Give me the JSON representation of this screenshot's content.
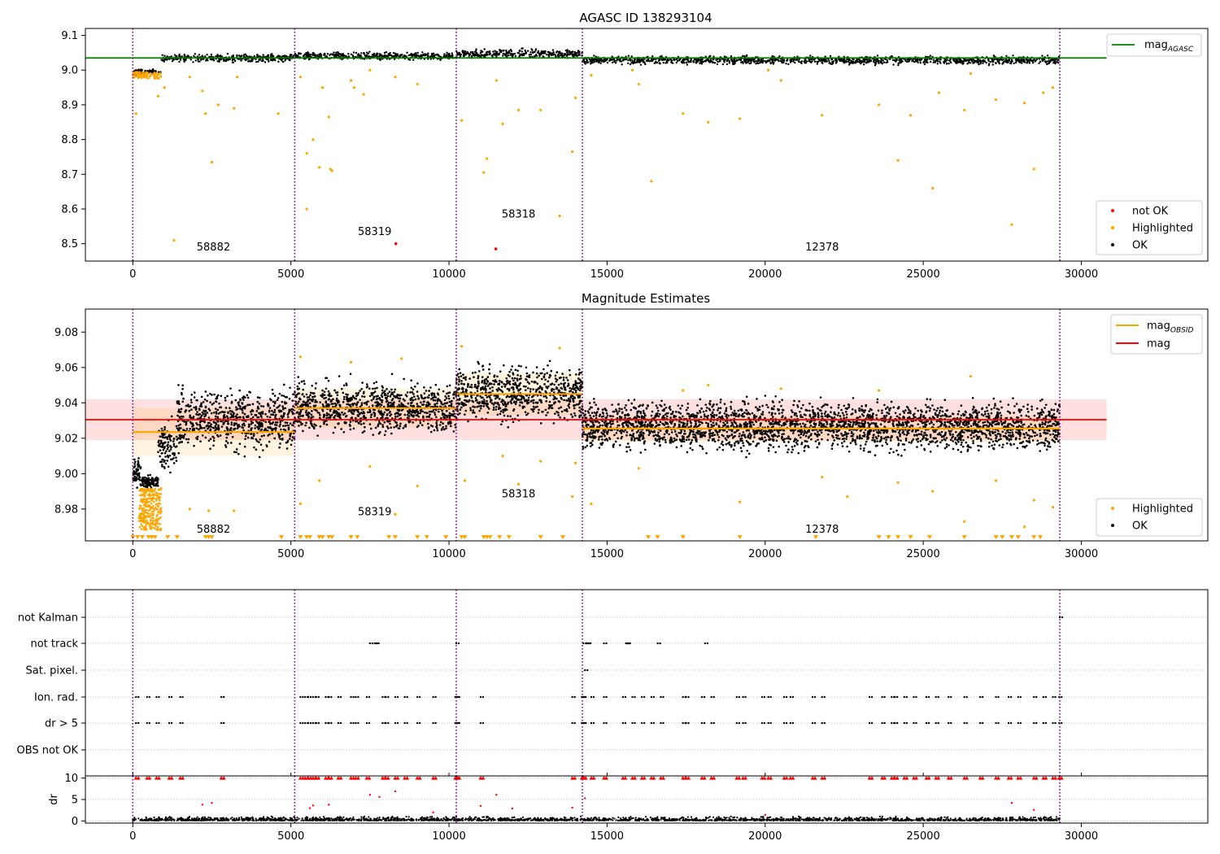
{
  "chart_data": [
    {
      "type": "scatter",
      "title": "AGASC ID 138293104",
      "xlim": [
        -1500,
        34000
      ],
      "ylim": [
        8.45,
        9.12
      ],
      "xticks": [
        0,
        5000,
        10000,
        15000,
        20000,
        25000,
        30000
      ],
      "yticks": [
        8.5,
        8.6,
        8.7,
        8.8,
        8.9,
        9.0,
        9.1
      ],
      "ytick_labels": [
        "8.5",
        "8.6",
        "8.7",
        "8.8",
        "8.9",
        "9.0",
        "9.1"
      ],
      "grid": false,
      "obsid_boundaries": [
        0,
        5120,
        10230,
        14220,
        29320
      ],
      "obsid_labels": [
        {
          "text": "58882",
          "x": 2550,
          "y": 8.48
        },
        {
          "text": "58319",
          "x": 7650,
          "y": 8.525
        },
        {
          "text": "58318",
          "x": 12200,
          "y": 8.575
        },
        {
          "text": "12378",
          "x": 21800,
          "y": 8.48
        }
      ],
      "mag_agasc": 9.035,
      "mag_agasc_xrange": [
        -1500,
        30800
      ],
      "ok_bands": [
        {
          "x0": 0,
          "x1": 900,
          "lo": 8.985,
          "hi": 9.005
        },
        {
          "x0": 900,
          "x1": 5120,
          "lo": 9.02,
          "hi": 9.05
        },
        {
          "x0": 5120,
          "x1": 10230,
          "lo": 9.025,
          "hi": 9.055
        },
        {
          "x0": 10230,
          "x1": 14220,
          "lo": 9.03,
          "hi": 9.065
        },
        {
          "x0": 14220,
          "x1": 29320,
          "lo": 9.012,
          "hi": 9.045
        }
      ],
      "highlighted_points": [
        {
          "x": 100,
          "y": 8.875
        },
        {
          "x": 800,
          "y": 8.925
        },
        {
          "x": 1000,
          "y": 8.95
        },
        {
          "x": 1300,
          "y": 8.51
        },
        {
          "x": 1800,
          "y": 8.98
        },
        {
          "x": 2200,
          "y": 8.94
        },
        {
          "x": 2300,
          "y": 8.875
        },
        {
          "x": 2500,
          "y": 8.735
        },
        {
          "x": 2700,
          "y": 8.9
        },
        {
          "x": 3200,
          "y": 8.89
        },
        {
          "x": 3300,
          "y": 8.98
        },
        {
          "x": 4600,
          "y": 8.875
        },
        {
          "x": 5300,
          "y": 8.98
        },
        {
          "x": 5500,
          "y": 8.6
        },
        {
          "x": 5500,
          "y": 8.76
        },
        {
          "x": 5700,
          "y": 8.8
        },
        {
          "x": 5900,
          "y": 8.72
        },
        {
          "x": 6000,
          "y": 8.95
        },
        {
          "x": 6200,
          "y": 8.865
        },
        {
          "x": 6250,
          "y": 8.715
        },
        {
          "x": 6300,
          "y": 8.71
        },
        {
          "x": 6900,
          "y": 8.97
        },
        {
          "x": 7000,
          "y": 8.95
        },
        {
          "x": 7300,
          "y": 8.93
        },
        {
          "x": 7500,
          "y": 9.0
        },
        {
          "x": 8300,
          "y": 8.98
        },
        {
          "x": 9000,
          "y": 8.96
        },
        {
          "x": 10400,
          "y": 8.855
        },
        {
          "x": 11100,
          "y": 8.705
        },
        {
          "x": 11200,
          "y": 8.745
        },
        {
          "x": 11500,
          "y": 8.97
        },
        {
          "x": 11700,
          "y": 8.845
        },
        {
          "x": 12200,
          "y": 8.885
        },
        {
          "x": 12900,
          "y": 8.885
        },
        {
          "x": 13500,
          "y": 8.58
        },
        {
          "x": 13900,
          "y": 8.765
        },
        {
          "x": 14000,
          "y": 8.92
        },
        {
          "x": 14500,
          "y": 8.985
        },
        {
          "x": 16000,
          "y": 8.96
        },
        {
          "x": 16400,
          "y": 8.68
        },
        {
          "x": 17400,
          "y": 8.875
        },
        {
          "x": 18200,
          "y": 8.85
        },
        {
          "x": 19200,
          "y": 8.86
        },
        {
          "x": 20500,
          "y": 8.97
        },
        {
          "x": 21800,
          "y": 8.87
        },
        {
          "x": 23600,
          "y": 8.9
        },
        {
          "x": 24200,
          "y": 8.74
        },
        {
          "x": 24600,
          "y": 8.87
        },
        {
          "x": 25300,
          "y": 8.66
        },
        {
          "x": 25500,
          "y": 8.935
        },
        {
          "x": 26300,
          "y": 8.885
        },
        {
          "x": 27300,
          "y": 8.915
        },
        {
          "x": 27800,
          "y": 8.555
        },
        {
          "x": 28200,
          "y": 8.905
        },
        {
          "x": 28500,
          "y": 8.715
        },
        {
          "x": 28800,
          "y": 8.935
        },
        {
          "x": 29100,
          "y": 8.95
        },
        {
          "x": 15800,
          "y": 9.0
        },
        {
          "x": 20100,
          "y": 9.0
        },
        {
          "x": 26500,
          "y": 8.99
        }
      ],
      "not_ok_points": [
        {
          "x": 8320,
          "y": 8.5
        },
        {
          "x": 11480,
          "y": 8.485
        }
      ],
      "legends": [
        {
          "placement": "top-right",
          "entries": [
            {
              "label": "mag",
              "subscript": "AGASC",
              "color": "#008000",
              "marker": "line"
            }
          ]
        },
        {
          "placement": "bottom-right",
          "entries": [
            {
              "label": "not OK",
              "color": "#ff0000",
              "marker": "dot"
            },
            {
              "label": "Highlighted",
              "color": "#ffa500",
              "marker": "dot"
            },
            {
              "label": "OK",
              "color": "#000000",
              "marker": "dot"
            }
          ]
        }
      ]
    },
    {
      "type": "scatter",
      "title": "Magnitude Estimates",
      "xlim": [
        -1500,
        34000
      ],
      "ylim": [
        8.962,
        9.093
      ],
      "xticks": [
        0,
        5000,
        10000,
        15000,
        20000,
        25000,
        30000
      ],
      "yticks": [
        8.98,
        9.0,
        9.02,
        9.04,
        9.06,
        9.08
      ],
      "ytick_labels": [
        "8.98",
        "9.00",
        "9.02",
        "9.04",
        "9.06",
        "9.08"
      ],
      "grid": false,
      "obsid_boundaries": [
        0,
        5120,
        10230,
        14220,
        29320
      ],
      "obsid_labels": [
        {
          "text": "58882",
          "x": 2550,
          "y": 8.9665
        },
        {
          "text": "58319",
          "x": 7650,
          "y": 8.9765
        },
        {
          "text": "58318",
          "x": 12200,
          "y": 8.9865
        },
        {
          "text": "12378",
          "x": 21800,
          "y": 8.9665
        }
      ],
      "mag": 9.0305,
      "mag_band": [
        9.019,
        9.042
      ],
      "mag_xrange": [
        -1500,
        30800
      ],
      "mag_obsid": [
        {
          "x0": 0,
          "x1": 5120,
          "value": 9.0235,
          "band": [
            9.01,
            9.037
          ]
        },
        {
          "x0": 5120,
          "x1": 10230,
          "value": 9.037,
          "band": [
            9.026,
            9.048
          ]
        },
        {
          "x0": 10230,
          "x1": 14220,
          "value": 9.045,
          "band": [
            9.033,
            9.057
          ]
        },
        {
          "x0": 14220,
          "x1": 29320,
          "value": 9.0255,
          "band": [
            9.018,
            9.033
          ]
        }
      ],
      "ok_cloud": [
        {
          "x0": 0,
          "x1": 300,
          "lo": 8.99,
          "hi": 9.012
        },
        {
          "x0": 300,
          "x1": 800,
          "lo": 8.99,
          "hi": 9.0
        },
        {
          "x0": 800,
          "x1": 1400,
          "lo": 8.995,
          "hi": 9.035
        },
        {
          "x0": 1400,
          "x1": 5120,
          "lo": 9.008,
          "hi": 9.053
        },
        {
          "x0": 5120,
          "x1": 6300,
          "lo": 9.018,
          "hi": 9.058
        },
        {
          "x0": 6300,
          "x1": 10230,
          "lo": 9.018,
          "hi": 9.057
        },
        {
          "x0": 10230,
          "x1": 14220,
          "lo": 9.024,
          "hi": 9.066
        },
        {
          "x0": 14220,
          "x1": 29320,
          "lo": 9.008,
          "hi": 9.046
        }
      ],
      "highlighted_points": [
        {
          "x": 200,
          "y": 8.975
        },
        {
          "x": 400,
          "y": 8.97
        },
        {
          "x": 600,
          "y": 8.985
        },
        {
          "x": 1800,
          "y": 8.98
        },
        {
          "x": 2400,
          "y": 8.979
        },
        {
          "x": 3200,
          "y": 8.979
        },
        {
          "x": 5300,
          "y": 8.983
        },
        {
          "x": 5300,
          "y": 9.066
        },
        {
          "x": 5900,
          "y": 8.996
        },
        {
          "x": 6900,
          "y": 9.063
        },
        {
          "x": 7500,
          "y": 9.004
        },
        {
          "x": 8300,
          "y": 8.977
        },
        {
          "x": 8500,
          "y": 9.065
        },
        {
          "x": 9000,
          "y": 8.993
        },
        {
          "x": 10400,
          "y": 9.072
        },
        {
          "x": 10500,
          "y": 8.996
        },
        {
          "x": 11700,
          "y": 9.01
        },
        {
          "x": 12200,
          "y": 8.994
        },
        {
          "x": 12900,
          "y": 9.007
        },
        {
          "x": 13500,
          "y": 9.071
        },
        {
          "x": 13900,
          "y": 8.987
        },
        {
          "x": 14000,
          "y": 9.006
        },
        {
          "x": 14500,
          "y": 8.983
        },
        {
          "x": 16000,
          "y": 9.003
        },
        {
          "x": 17400,
          "y": 9.047
        },
        {
          "x": 18200,
          "y": 9.05
        },
        {
          "x": 19200,
          "y": 8.984
        },
        {
          "x": 20500,
          "y": 9.048
        },
        {
          "x": 21800,
          "y": 8.998
        },
        {
          "x": 22600,
          "y": 8.987
        },
        {
          "x": 23600,
          "y": 9.047
        },
        {
          "x": 24200,
          "y": 8.995
        },
        {
          "x": 25300,
          "y": 8.99
        },
        {
          "x": 26300,
          "y": 8.973
        },
        {
          "x": 26500,
          "y": 9.055
        },
        {
          "x": 27300,
          "y": 8.996
        },
        {
          "x": 28200,
          "y": 8.97
        },
        {
          "x": 28500,
          "y": 8.985
        },
        {
          "x": 29100,
          "y": 8.981
        }
      ],
      "clipped_low_x": [
        0,
        150,
        300,
        500,
        600,
        700,
        1100,
        1400,
        2300,
        2400,
        2500,
        4700,
        5300,
        5500,
        5600,
        5900,
        6000,
        6200,
        6300,
        6900,
        7100,
        8100,
        8300,
        9000,
        9300,
        9900,
        10400,
        10500,
        11100,
        11200,
        11300,
        11600,
        11900,
        12900,
        13600,
        16300,
        16600,
        17400,
        19200,
        21600,
        23600,
        23900,
        24200,
        24600,
        25200,
        26300,
        27300,
        27500,
        27800,
        28000,
        28500,
        28700
      ],
      "legends": [
        {
          "placement": "top-right",
          "entries": [
            {
              "label": "mag",
              "subscript": "OBSID",
              "color": "#ffa500",
              "marker": "line"
            },
            {
              "label": "mag",
              "subscript": "",
              "color": "#ff0000",
              "marker": "line"
            }
          ]
        },
        {
          "placement": "bottom-right",
          "entries": [
            {
              "label": "Highlighted",
              "color": "#ffa500",
              "marker": "dot"
            },
            {
              "label": "OK",
              "color": "#000000",
              "marker": "dot"
            }
          ]
        }
      ]
    },
    {
      "type": "scatter",
      "title": "",
      "xlim": [
        -1500,
        34000
      ],
      "categories": [
        "not Kalman",
        "not track",
        "Sat. pixel.",
        "Ion. rad.",
        "dr > 5",
        "OBS not OK"
      ],
      "grid": true,
      "obsid_boundaries": [
        0,
        5120,
        10230,
        14220,
        29320
      ],
      "flags": {
        "not Kalman": [
          29320
        ],
        "not track": [
          7500,
          7650,
          7700,
          10230,
          14250,
          14350,
          14400,
          14900,
          15600,
          15650,
          16600,
          18100
        ],
        "Sat. pixel.": [
          14300
        ],
        "Ion. rad.": [
          100,
          450,
          750,
          1150,
          1500,
          2800,
          5300,
          5450,
          5550,
          5700,
          5800,
          6100,
          6200,
          6500,
          6900,
          7050,
          7400,
          7900,
          8000,
          8300,
          8600,
          9000,
          9500,
          10200,
          10250,
          11000,
          13900,
          14200,
          14250,
          14500,
          14900,
          15500,
          15800,
          16100,
          16400,
          16700,
          17400,
          17500,
          18000,
          18300,
          19100,
          19300,
          19900,
          20100,
          20600,
          20800,
          21500,
          21800,
          23300,
          23700,
          24000,
          24100,
          24400,
          24700,
          25100,
          25400,
          25800,
          26300,
          26800,
          27300,
          27700,
          28000,
          28500,
          28800,
          29100,
          29300
        ],
        "dr > 5": [
          100,
          450,
          750,
          1150,
          1500,
          2800,
          5300,
          5450,
          5550,
          5700,
          5800,
          6100,
          6200,
          6500,
          6900,
          7050,
          7400,
          7900,
          8000,
          8300,
          8600,
          9000,
          9500,
          10200,
          10250,
          11000,
          13900,
          14200,
          14250,
          14500,
          14900,
          15500,
          15800,
          16100,
          16400,
          16700,
          17400,
          17500,
          18000,
          18300,
          19100,
          19300,
          19900,
          20100,
          20600,
          20800,
          21500,
          21800,
          23300,
          23700,
          24000,
          24100,
          24400,
          24700,
          25100,
          25400,
          25800,
          26300,
          26800,
          27300,
          27700,
          28000,
          28500,
          28800,
          29100,
          29300
        ],
        "OBS not OK": []
      }
    },
    {
      "type": "scatter",
      "title": "",
      "ylabel": "dr",
      "xlim": [
        -1500,
        34000
      ],
      "ylim": [
        -0.5,
        10.5
      ],
      "xticks": [
        0,
        5000,
        10000,
        15000,
        20000,
        25000,
        30000
      ],
      "yticks": [
        0,
        5,
        10
      ],
      "ytick_labels": [
        "0",
        "5",
        "10"
      ],
      "grid": true,
      "obsid_boundaries": [
        0,
        5120,
        10230,
        14220,
        29320
      ],
      "clipped_high_x": [
        100,
        450,
        750,
        1150,
        1500,
        2800,
        5300,
        5450,
        5550,
        5700,
        5800,
        6100,
        6200,
        6500,
        6900,
        7050,
        7400,
        7900,
        8000,
        8300,
        8600,
        9000,
        9500,
        10200,
        10250,
        11000,
        13900,
        14200,
        14250,
        14500,
        14900,
        15500,
        15800,
        16100,
        16400,
        16700,
        17400,
        17500,
        18000,
        18300,
        19100,
        19300,
        19900,
        20100,
        20600,
        20800,
        21500,
        21800,
        23300,
        23700,
        24000,
        24100,
        24400,
        24700,
        25100,
        25400,
        25800,
        26300,
        26800,
        27300,
        27700,
        28000,
        28500,
        28800,
        29100,
        29300
      ],
      "mid_points": [
        {
          "x": 2200,
          "y": 3.8
        },
        {
          "x": 2500,
          "y": 4.2
        },
        {
          "x": 5600,
          "y": 3.0
        },
        {
          "x": 5700,
          "y": 3.6
        },
        {
          "x": 6200,
          "y": 3.8
        },
        {
          "x": 7500,
          "y": 6.1
        },
        {
          "x": 7800,
          "y": 5.6
        },
        {
          "x": 8300,
          "y": 6.9
        },
        {
          "x": 11000,
          "y": 3.5
        },
        {
          "x": 11500,
          "y": 6.1
        },
        {
          "x": 12000,
          "y": 2.9
        },
        {
          "x": 13900,
          "y": 3.1
        },
        {
          "x": 14300,
          "y": 5.3
        },
        {
          "x": 27800,
          "y": 4.2
        },
        {
          "x": 28500,
          "y": 2.6
        },
        {
          "x": 9500,
          "y": 2.0
        },
        {
          "x": 20000,
          "y": 1.4
        }
      ],
      "base_ranges": [
        {
          "x0": 0,
          "x1": 29320,
          "lo": 0.1,
          "hi": 1.1
        }
      ]
    }
  ],
  "colors": {
    "ok": "#000000",
    "highlighted": "#ffa500",
    "not_ok": "#ff0000",
    "boundary": "#800080",
    "agasc_line": "#008000",
    "mag_line": "#ff0000",
    "obsid_line": "#ffa500"
  }
}
